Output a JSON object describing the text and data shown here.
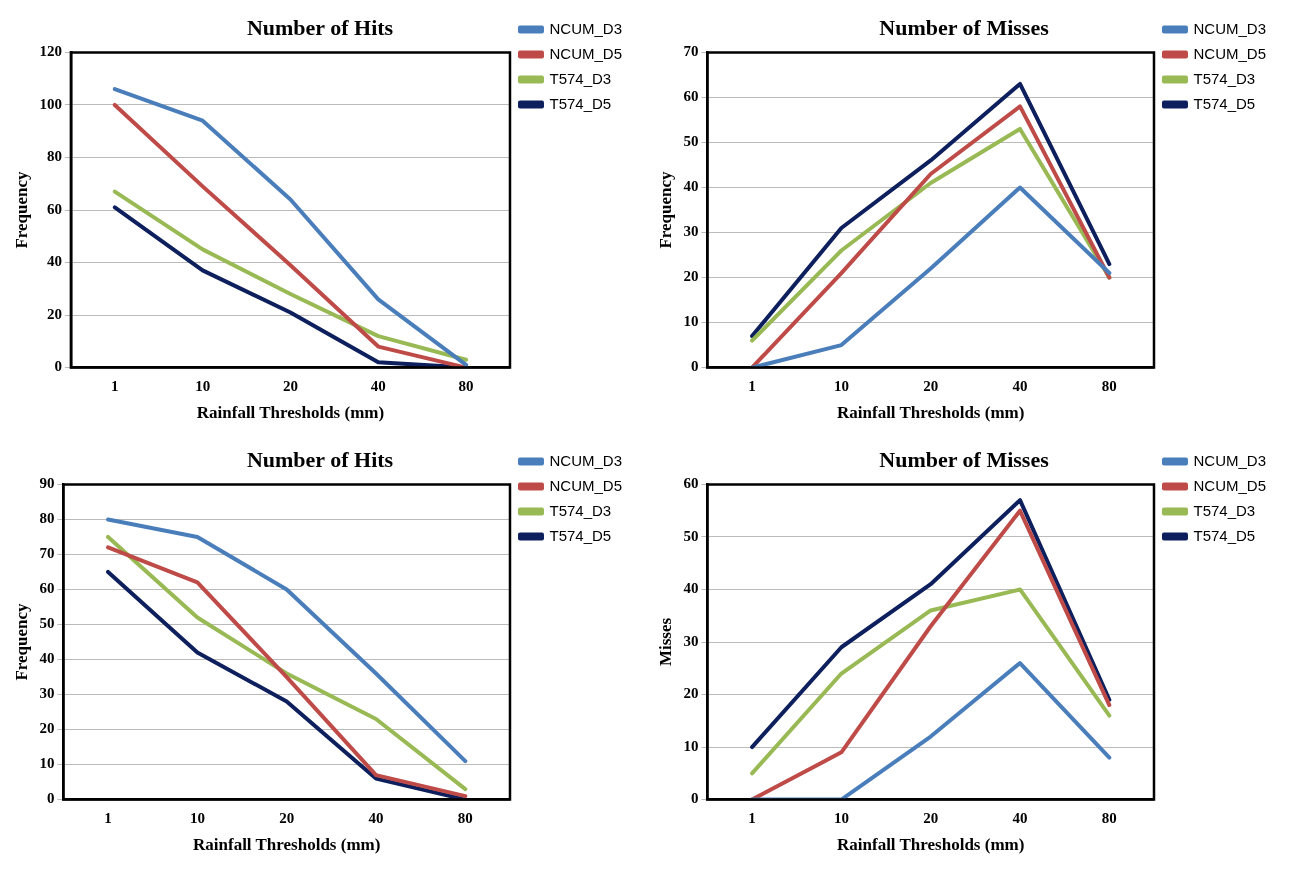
{
  "chart_data": [
    {
      "type": "line",
      "title": "Number of Hits",
      "xlabel": "Rainfall Thresholds (mm)",
      "ylabel": "Frequency",
      "categories": [
        "1",
        "10",
        "20",
        "40",
        "80"
      ],
      "ylim": [
        0,
        120
      ],
      "yticks": [
        0,
        20,
        40,
        60,
        80,
        100,
        120
      ],
      "grid": "y",
      "legend": "top right",
      "marker": "none",
      "line_style": "solid",
      "series": [
        {
          "name": "NCUM_D3",
          "color": "#4a7ebb",
          "values": [
            106,
            94,
            64,
            26,
            1
          ]
        },
        {
          "name": "NCUM_D5",
          "color": "#be4b48",
          "values": [
            100,
            69,
            39,
            8,
            0
          ]
        },
        {
          "name": "T574_D3",
          "color": "#98b954",
          "values": [
            67,
            45,
            28,
            12,
            3
          ]
        },
        {
          "name": "T574_D5",
          "color": "#0d1f5c",
          "values": [
            61,
            37,
            21,
            2,
            0
          ]
        }
      ]
    },
    {
      "type": "line",
      "title": "Number of Misses",
      "xlabel": "Rainfall Thresholds (mm)",
      "ylabel": "Frequency",
      "categories": [
        "1",
        "10",
        "20",
        "40",
        "80"
      ],
      "ylim": [
        0,
        70
      ],
      "yticks": [
        0,
        10,
        20,
        30,
        40,
        50,
        60,
        70
      ],
      "grid": "y",
      "legend": "top right",
      "marker": "none",
      "line_style": "solid",
      "series": [
        {
          "name": "NCUM_D3",
          "color": "#4a7ebb",
          "values": [
            0,
            5,
            22,
            40,
            21
          ]
        },
        {
          "name": "NCUM_D5",
          "color": "#be4b48",
          "values": [
            0,
            21,
            43,
            58,
            20
          ]
        },
        {
          "name": "T574_D3",
          "color": "#98b954",
          "values": [
            6,
            26,
            41,
            53,
            20
          ]
        },
        {
          "name": "T574_D5",
          "color": "#0d1f5c",
          "values": [
            7,
            31,
            46,
            63,
            23
          ]
        }
      ]
    },
    {
      "type": "line",
      "title": "Number of Hits",
      "xlabel": "Rainfall Thresholds (mm)",
      "ylabel": "Frequency",
      "categories": [
        "1",
        "10",
        "20",
        "40",
        "80"
      ],
      "ylim": [
        0,
        90
      ],
      "yticks": [
        0,
        10,
        20,
        30,
        40,
        50,
        60,
        70,
        80,
        90
      ],
      "grid": "y",
      "legend": "top right",
      "marker": "none",
      "line_style": "solid",
      "series": [
        {
          "name": "NCUM_D3",
          "color": "#4a7ebb",
          "values": [
            80,
            75,
            60,
            36,
            11
          ]
        },
        {
          "name": "NCUM_D5",
          "color": "#be4b48",
          "values": [
            72,
            62,
            35,
            7,
            1
          ]
        },
        {
          "name": "T574_D3",
          "color": "#98b954",
          "values": [
            75,
            52,
            36,
            23,
            3
          ]
        },
        {
          "name": "T574_D5",
          "color": "#0d1f5c",
          "values": [
            65,
            42,
            28,
            6,
            0
          ]
        }
      ]
    },
    {
      "type": "line",
      "title": "Number of Misses",
      "xlabel": "Rainfall Thresholds (mm)",
      "ylabel": "Misses",
      "categories": [
        "1",
        "10",
        "20",
        "40",
        "80"
      ],
      "ylim": [
        0,
        60
      ],
      "yticks": [
        0,
        10,
        20,
        30,
        40,
        50,
        60
      ],
      "grid": "y",
      "legend": "top right",
      "marker": "none",
      "line_style": "solid",
      "series": [
        {
          "name": "NCUM_D3",
          "color": "#4a7ebb",
          "values": [
            0,
            0,
            12,
            26,
            8
          ]
        },
        {
          "name": "NCUM_D5",
          "color": "#be4b48",
          "values": [
            0,
            9,
            33,
            55,
            18
          ]
        },
        {
          "name": "T574_D3",
          "color": "#98b954",
          "values": [
            5,
            24,
            36,
            40,
            16
          ]
        },
        {
          "name": "T574_D5",
          "color": "#0d1f5c",
          "values": [
            10,
            29,
            41,
            57,
            19
          ]
        }
      ]
    }
  ]
}
